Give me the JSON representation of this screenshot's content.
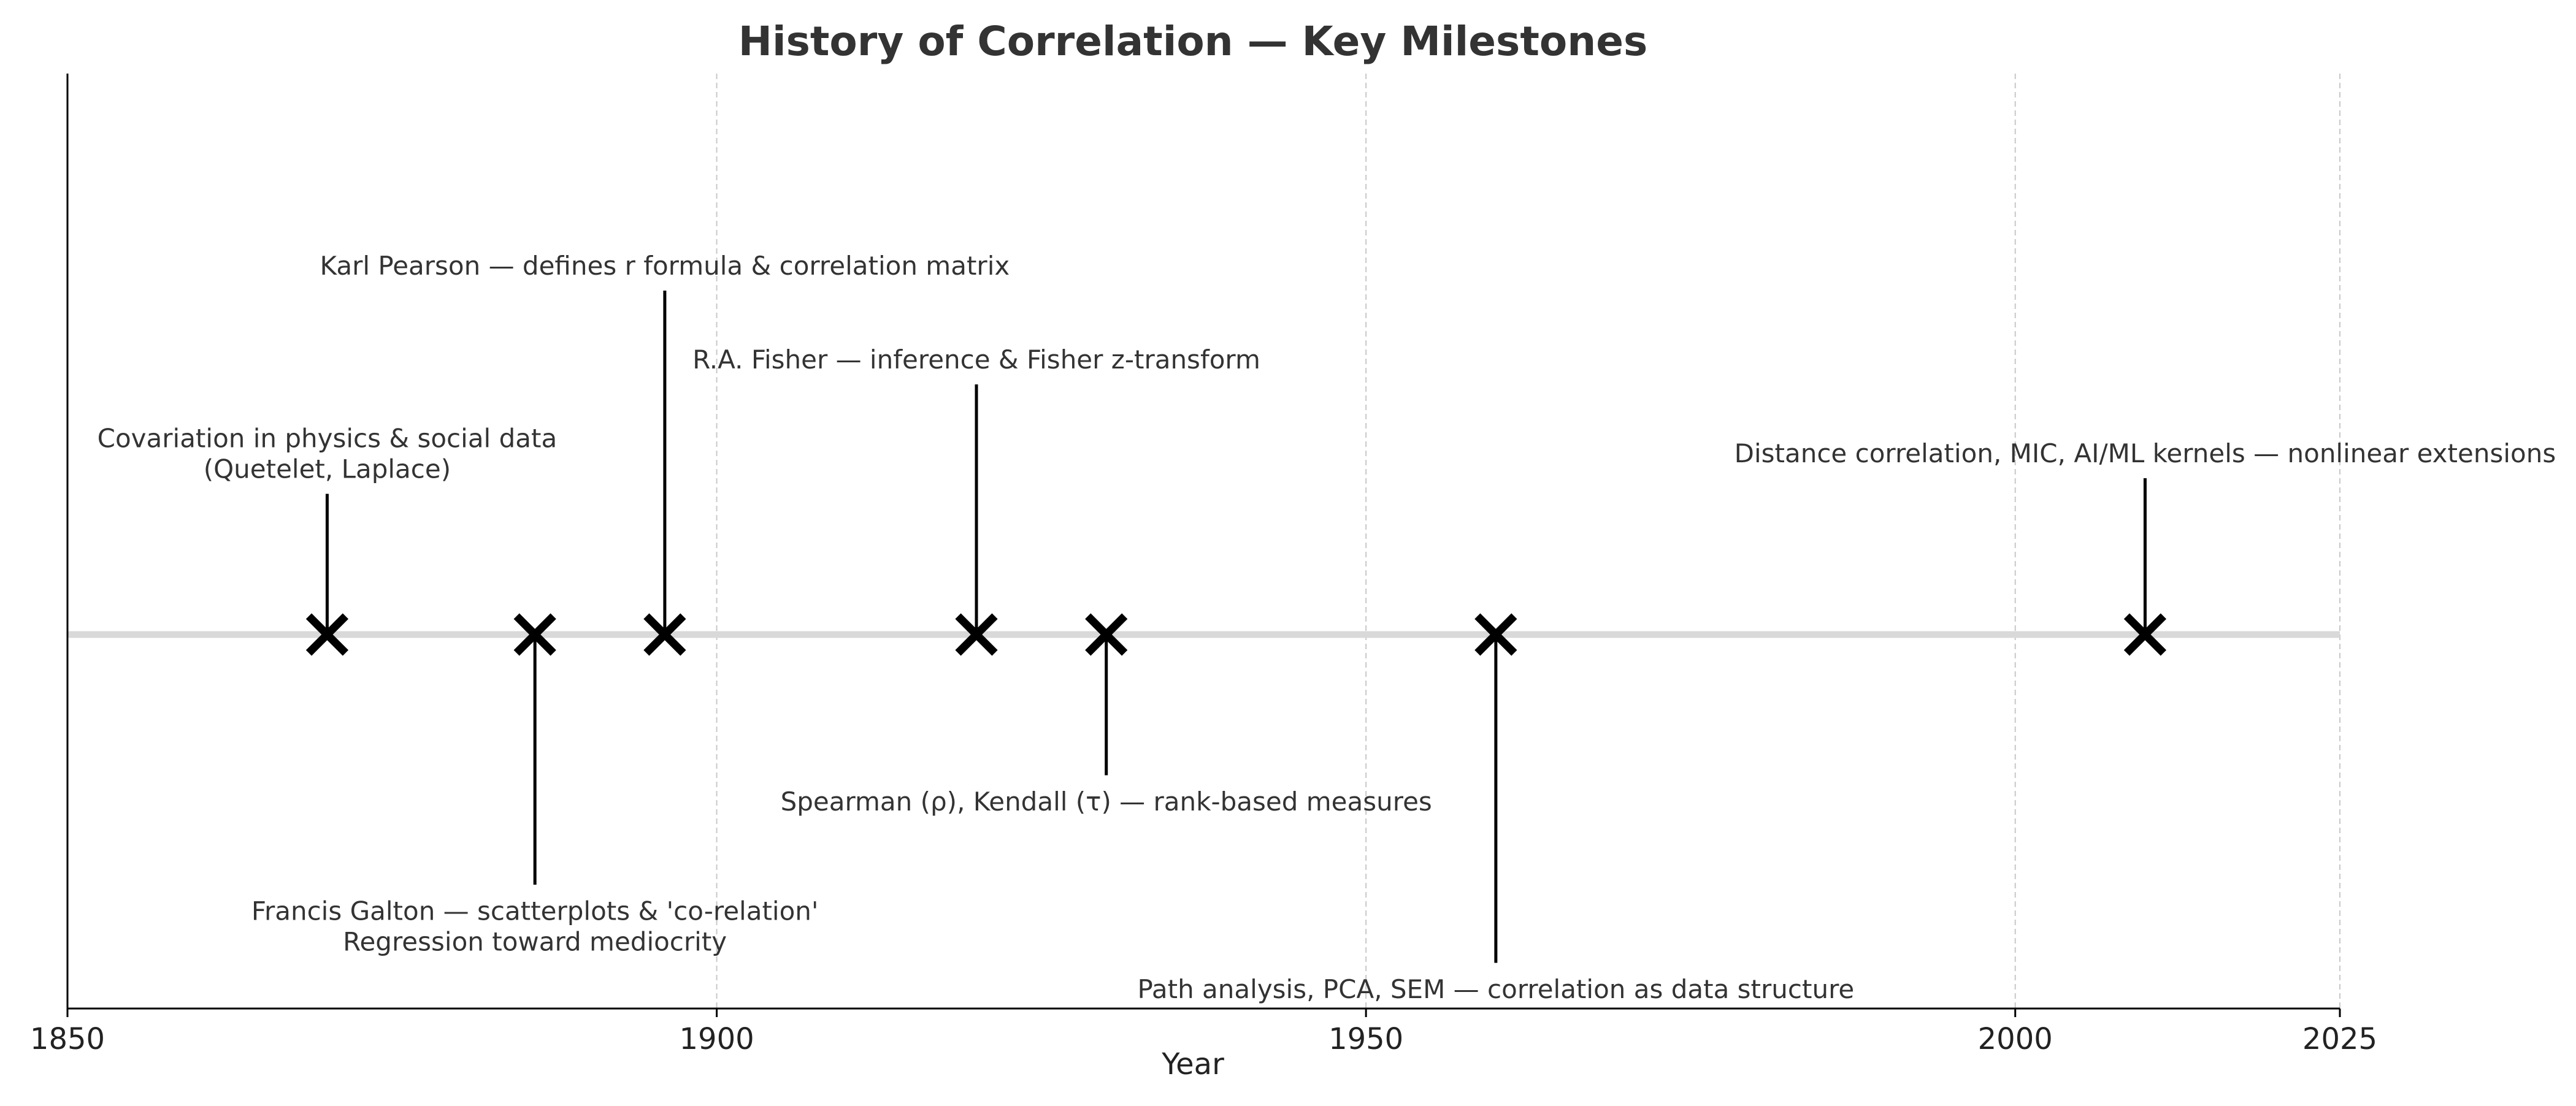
{
  "chart_data": {
    "type": "timeline",
    "title": "History of Correlation — Key Milestones",
    "xlabel": "Year",
    "ylabel": "",
    "xlim": [
      1850,
      2025
    ],
    "x_ticks": [
      1850,
      1900,
      1950,
      2000,
      2025
    ],
    "grid": "vertical-dashed",
    "colors": {
      "axis": "#000000",
      "baseline": "#d9d9d9",
      "grid": "#c8c8c8",
      "marker": "#000000",
      "text": "#333333"
    },
    "events": [
      {
        "year": 1870,
        "offset": 0.9,
        "lines": [
          "Covariation in physics & social data",
          "(Quetelet, Laplace)"
        ]
      },
      {
        "year": 1886,
        "offset": -1.6,
        "lines": [
          "Francis Galton — scatterplots & 'co-relation'",
          "Regression toward mediocrity"
        ]
      },
      {
        "year": 1896,
        "offset": 2.2,
        "lines": [
          "Karl Pearson — defines r formula & correlation matrix"
        ]
      },
      {
        "year": 1920,
        "offset": 1.6,
        "lines": [
          "R.A. Fisher — inference & Fisher z-transform"
        ]
      },
      {
        "year": 1930,
        "offset": -0.9,
        "lines": [
          "Spearman (ρ), Kendall (τ) — rank-based measures"
        ]
      },
      {
        "year": 1960,
        "offset": -2.1,
        "lines": [
          "Path analysis, PCA, SEM — correlation as data structure"
        ]
      },
      {
        "year": 2010,
        "offset": 1.0,
        "lines": [
          "Distance correlation, MIC, AI/ML kernels — nonlinear extensions"
        ]
      }
    ]
  }
}
